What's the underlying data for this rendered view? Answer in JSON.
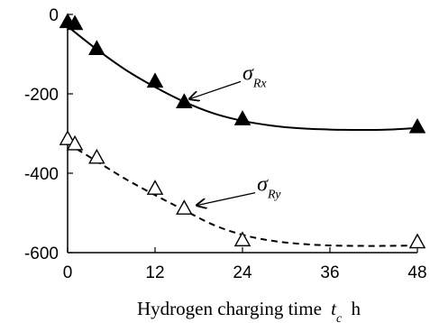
{
  "chart_data": {
    "type": "scatter",
    "title": "",
    "xlabel": "Hydrogen charging time",
    "xlabel_var": "t",
    "xlabel_sub": "c",
    "xlabel_unit": "h",
    "ylabel": "",
    "xlim": [
      0,
      48
    ],
    "ylim": [
      -600,
      0
    ],
    "xticks": [
      0,
      12,
      24,
      36,
      48
    ],
    "yticks": [
      0,
      -200,
      -400,
      -600
    ],
    "grid": false,
    "series": [
      {
        "key": "rx",
        "marker": "filled-triangle",
        "line": "solid",
        "color": "#000000",
        "x": [
          0,
          1,
          4,
          12,
          16,
          24,
          48
        ],
        "y": [
          -20,
          -25,
          -88,
          -170,
          -222,
          -265,
          -285
        ],
        "fit_x": [
          0,
          4,
          8,
          12,
          16,
          20,
          24,
          28,
          32,
          36,
          40,
          44,
          48
        ],
        "fit_y": [
          -30,
          -88,
          -140,
          -183,
          -220,
          -249,
          -268,
          -280,
          -287,
          -290,
          -291,
          -290,
          -286
        ]
      },
      {
        "key": "ry",
        "marker": "open-triangle",
        "line": "dashed",
        "color": "#000000",
        "x": [
          0,
          1,
          4,
          12,
          16,
          24,
          48
        ],
        "y": [
          -315,
          -328,
          -362,
          -440,
          -490,
          -570,
          -575
        ],
        "fit_x": [
          0,
          4,
          8,
          12,
          16,
          20,
          24,
          28,
          32,
          36,
          40,
          44,
          48
        ],
        "fit_y": [
          -325,
          -370,
          -415,
          -455,
          -493,
          -530,
          -555,
          -570,
          -578,
          -582,
          -583,
          -583,
          -582
        ]
      }
    ],
    "annotations": [
      {
        "target": "rx",
        "sym": "σ",
        "sub": "Rx",
        "at": [
          24,
          -160
        ],
        "arrow_to": [
          16,
          -222
        ]
      },
      {
        "target": "ry",
        "sym": "σ",
        "sub": "Ry",
        "at": [
          26,
          -440
        ],
        "arrow_to": [
          17,
          -490
        ]
      }
    ]
  }
}
